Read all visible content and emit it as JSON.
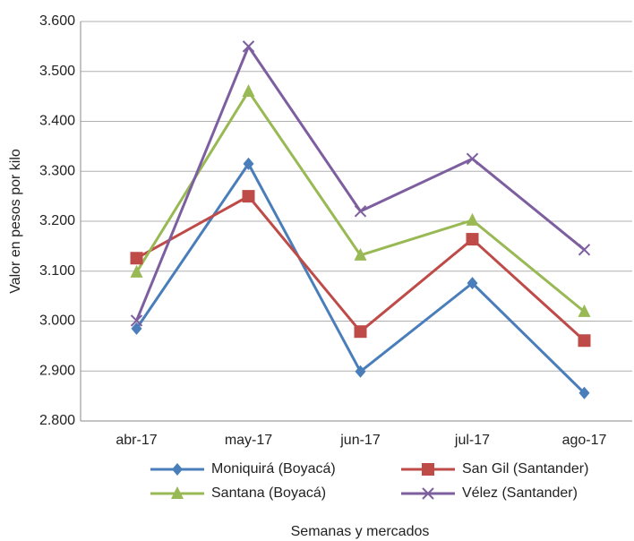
{
  "chart_data": {
    "type": "line",
    "y_label": "Valor en pesos por kilo",
    "x_label": "Semanas y mercados",
    "categories": [
      "abr-17",
      "may-17",
      "jun-17",
      "jul-17",
      "ago-17"
    ],
    "series": [
      {
        "name": "Moniquirá (Boyacá)",
        "color": "#4a7ebb",
        "marker": "diamond",
        "values": [
          2985,
          3315,
          2899,
          3076,
          2856
        ]
      },
      {
        "name": "San Gil (Santander)",
        "color": "#be4b48",
        "marker": "square",
        "values": [
          3126,
          3250,
          2979,
          3164,
          2961
        ]
      },
      {
        "name": "Santana (Boyacá)",
        "color": "#98b954",
        "marker": "triangle",
        "values": [
          3098,
          3460,
          3132,
          3202,
          3019
        ]
      },
      {
        "name": "Vélez (Santander)",
        "color": "#7d5fa0",
        "marker": "x",
        "values": [
          3001,
          3550,
          3220,
          3325,
          3143
        ]
      }
    ],
    "ylim": [
      2800,
      3600
    ],
    "yticks": [
      {
        "value": 2800,
        "label": "2.800"
      },
      {
        "value": 2900,
        "label": "2.900"
      },
      {
        "value": 3000,
        "label": "3.000"
      },
      {
        "value": 3100,
        "label": "3.100"
      },
      {
        "value": 3200,
        "label": "3.200"
      },
      {
        "value": 3300,
        "label": "3.300"
      },
      {
        "value": 3400,
        "label": "3.400"
      },
      {
        "value": 3500,
        "label": "3.500"
      },
      {
        "value": 3600,
        "label": "3.600"
      }
    ],
    "grid": true,
    "legend": "bottom"
  }
}
